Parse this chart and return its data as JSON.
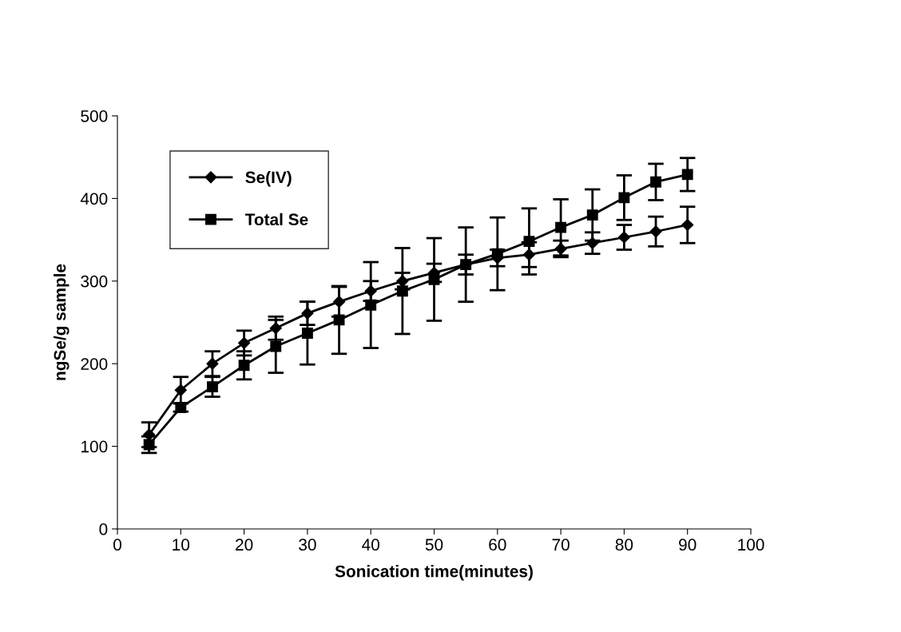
{
  "chart_data": {
    "type": "line",
    "xlabel": "Sonication time(minutes)",
    "ylabel": "ngSe/g sample",
    "x": [
      5,
      10,
      15,
      20,
      25,
      30,
      35,
      40,
      45,
      50,
      55,
      60,
      65,
      70,
      75,
      80,
      85,
      90
    ],
    "series": [
      {
        "name": "Se(IV)",
        "color": "#000000",
        "marker": "diamond",
        "values": [
          114,
          168,
          200,
          225,
          243,
          261,
          275,
          288,
          300,
          310,
          320,
          328,
          332,
          339,
          346,
          353,
          360,
          368
        ],
        "errors": [
          15,
          16,
          15,
          15,
          14,
          14,
          18,
          12,
          10,
          11,
          12,
          10,
          15,
          10,
          13,
          15,
          18,
          22
        ]
      },
      {
        "name": "Total Se",
        "color": "#000000",
        "marker": "square",
        "values": [
          102,
          147,
          172,
          198,
          221,
          237,
          253,
          271,
          288,
          302,
          320,
          333,
          348,
          365,
          380,
          401,
          420,
          429
        ],
        "errors": [
          10,
          5,
          12,
          17,
          32,
          38,
          41,
          52,
          52,
          50,
          45,
          44,
          40,
          34,
          31,
          27,
          22,
          20
        ]
      }
    ],
    "xlim": [
      0,
      100
    ],
    "xticks": [
      0,
      10,
      20,
      30,
      40,
      50,
      60,
      70,
      80,
      90,
      100
    ],
    "ylim": [
      0,
      500
    ],
    "yticks": [
      0,
      100,
      200,
      300,
      400,
      500
    ],
    "grid": false,
    "legend": "top left",
    "line_style": "solid"
  }
}
